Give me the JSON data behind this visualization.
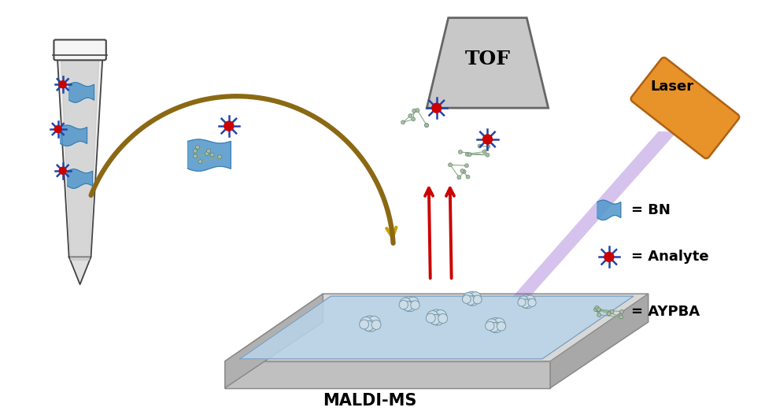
{
  "background_color": "#ffffff",
  "tof_label": "TOF",
  "tof_color": "#c8c8c8",
  "tof_edge": "#666666",
  "laser_label": "Laser",
  "laser_color": "#e8922a",
  "laser_edge": "#b06010",
  "maldi_label": "MALDI-MS",
  "plate_gray": "#c8c8c8",
  "plate_gray_dark": "#aaaaaa",
  "plate_blue": "#b8d4e8",
  "plate_edge": "#888888",
  "arrow_color": "#8B6914",
  "red_arrow_color": "#cc0000",
  "laser_beam_color": "#8855cc",
  "bn_flag_color": "#5599cc",
  "analyte_center": "#cc0000",
  "analyte_spike": "#2244aa",
  "cloud_fill": "#ccdde8",
  "cloud_edge": "#7799aa",
  "legend_bn": "= BN",
  "legend_analyte": "= Analyte",
  "legend_aypba": "= AYPBA",
  "figsize": [
    9.86,
    5.22
  ],
  "dpi": 100
}
